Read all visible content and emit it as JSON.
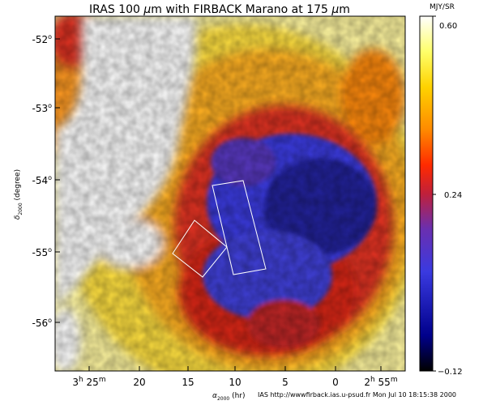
{
  "figure": {
    "title_prefix": "IRAS 100 ",
    "title_mu1": "μ",
    "title_mid": "m with FIRBACK Marano at 175 ",
    "title_mu2": "μ",
    "title_suffix": "m"
  },
  "y_axis": {
    "label_main": "δ",
    "label_sub": "2000",
    "label_unit": " (degree)",
    "ticks": [
      {
        "deg": "-52",
        "sup": "o",
        "value": -52
      },
      {
        "deg": "-53",
        "sup": "o",
        "value": -53
      },
      {
        "deg": "-54",
        "sup": "o",
        "value": -54
      },
      {
        "deg": "-55",
        "sup": "o",
        "value": -55
      },
      {
        "deg": "-56",
        "sup": "o",
        "value": -56
      }
    ]
  },
  "x_axis": {
    "label_main": "α",
    "label_sub": "2000",
    "label_unit": " (hr)",
    "ticks": [
      {
        "pre": "3",
        "h": "h",
        "mid": " 25",
        "m": "m"
      },
      {
        "pre": "20"
      },
      {
        "pre": "15"
      },
      {
        "pre": "10"
      },
      {
        "pre": "5"
      },
      {
        "pre": "0"
      },
      {
        "pre": "2",
        "h": "h",
        "mid": " 55",
        "m": "m"
      }
    ]
  },
  "colorbar": {
    "unit": "MJY/SR",
    "max_label": "0.60",
    "mid_label": "0.24",
    "min_label": "−0.12",
    "max": 0.6,
    "mid": 0.24,
    "min": -0.12,
    "colors": [
      "#000000",
      "#00008b",
      "#3a3ae0",
      "#6a2fb0",
      "#c0203a",
      "#ff2a00",
      "#ff8a00",
      "#ffd200",
      "#ffff6a",
      "#ffffff"
    ]
  },
  "footer": "IAS http://wwwfirback.ias.u-psud.fr Mon Jul 10 18:15:38 2000"
}
